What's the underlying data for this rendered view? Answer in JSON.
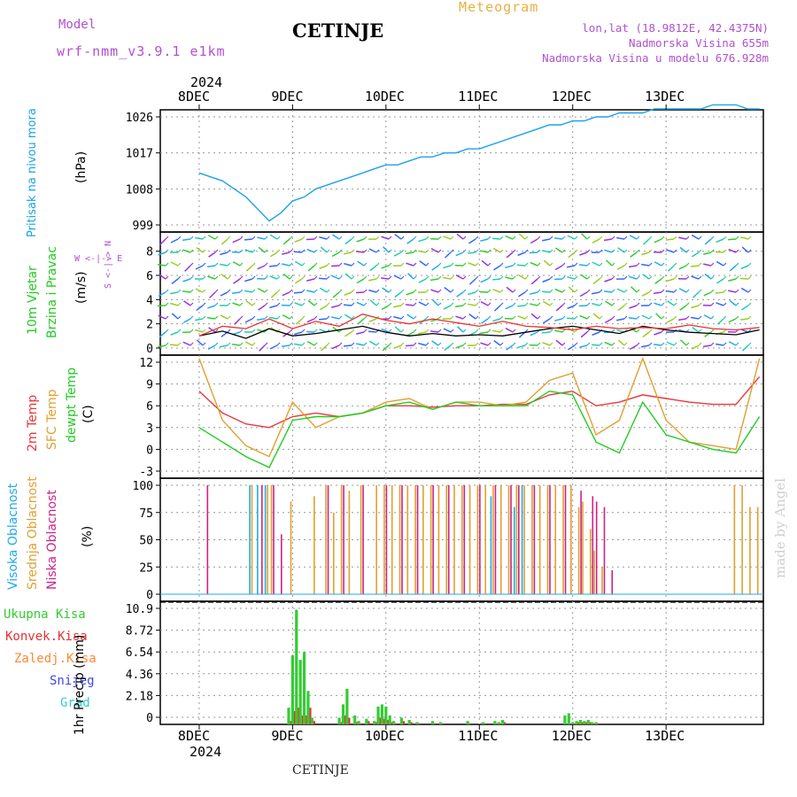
{
  "header": {
    "model_label": "Model",
    "model_value": "wrf-nmm_v3.9.1  e1km",
    "title": "CETINJE",
    "meteogram": "Meteogram",
    "lonlat": "lon,lat (18.9812E, 42.4375N)",
    "elevation": "Nadmorska Visina 655m",
    "model_elevation": "Nadmorska Visina u modelu 676.928m",
    "footer_station": "CETINJE",
    "watermark": "made by Angel"
  },
  "time_axis": {
    "top_year": "2024",
    "bottom_year": "2024",
    "day_labels": [
      "8DEC",
      "9DEC",
      "10DEC",
      "11DEC",
      "12DEC",
      "13DEC"
    ]
  },
  "panel_labels": {
    "pressure": [
      "Pritisak na nivou mora",
      "(hPa)"
    ],
    "wind": [
      "10m Vjetar",
      "Brzina i Pravac",
      "(m/s)"
    ],
    "compass": "W <-|-> E",
    "compass_ns": "S <-|-> N",
    "temp": [
      "2m Temp",
      "SFC Temp",
      "dewpt Temp",
      "(C)"
    ],
    "cloud": [
      "Visoka Oblacnost",
      "Srednja Oblacnost",
      "Niska Oblacnost",
      "(%)"
    ],
    "precip": [
      "Ukupna Kisa",
      "Konvek.Kisa",
      "Zaledj.Kisa",
      "Snijeg",
      "Grad"
    ],
    "precip_unit": "1hr Precip (mm)"
  },
  "colors": {
    "pressure": "#1aa3e8",
    "temp2m": "#e8373c",
    "sfc": "#e0a030",
    "dewpt": "#22cc22",
    "high_cloud": "#22aaee",
    "mid_cloud": "#e0a030",
    "low_cloud": "#cc2288",
    "total_rain": "#33cc33",
    "conv_rain": "#e83030",
    "frz_rain": "#ff8833",
    "snow": "#4444ee",
    "hail": "#33cccc",
    "meteogram": "#e8b040",
    "model": "#b050d0"
  },
  "chart_data": [
    {
      "type": "line",
      "name": "pressure",
      "xlabel": "",
      "ylabel": "(hPa)",
      "ylim": [
        999,
        1026
      ],
      "yticks": [
        "1026",
        "1017",
        "1008",
        "999"
      ],
      "x": [
        0,
        3,
        6,
        9,
        12,
        15,
        18,
        21,
        24,
        27,
        30,
        33,
        36,
        39,
        42,
        45,
        48,
        51,
        54,
        57,
        60,
        63,
        66,
        69,
        72,
        75,
        78,
        81,
        84,
        87,
        90,
        93,
        96,
        99,
        102,
        105,
        108,
        111,
        114,
        117,
        120,
        123,
        126,
        129,
        132,
        135,
        138,
        141,
        144
      ],
      "values": [
        1012,
        1011,
        1010,
        1008,
        1006,
        1003,
        1000,
        1002,
        1005,
        1006,
        1008,
        1009,
        1010,
        1011,
        1012,
        1013,
        1014,
        1014,
        1015,
        1016,
        1016,
        1017,
        1017,
        1018,
        1018,
        1019,
        1020,
        1021,
        1022,
        1023,
        1024,
        1024,
        1025,
        1025,
        1026,
        1026,
        1027,
        1027,
        1027,
        1028,
        1028,
        1028,
        1028,
        1028,
        1029,
        1029,
        1029,
        1028,
        1028
      ]
    },
    {
      "type": "line",
      "name": "wind",
      "xlabel": "",
      "ylabel": "(m/s)",
      "ylim": [
        0,
        9
      ],
      "yticks": [
        "8",
        "6",
        "4",
        "2",
        "0"
      ],
      "x": [
        0,
        6,
        12,
        18,
        24,
        30,
        36,
        42,
        48,
        54,
        60,
        66,
        72,
        78,
        84,
        90,
        96,
        102,
        108,
        114,
        120,
        126,
        132,
        138,
        144
      ],
      "series": [
        {
          "values": [
            1.0,
            1.4,
            0.8,
            1.6,
            1.0,
            1.2,
            1.5,
            1.8,
            1.3,
            1.0,
            1.2,
            1.0,
            1.1,
            1.0,
            1.3,
            1.6,
            1.8,
            1.5,
            1.2,
            1.8,
            1.5,
            1.3,
            1.2,
            1.1,
            1.5
          ]
        },
        {
          "values": [
            1.0,
            1.8,
            1.6,
            2.4,
            1.6,
            2.2,
            1.8,
            2.8,
            2.3,
            2.0,
            2.4,
            2.1,
            1.8,
            2.2,
            1.8,
            1.7,
            1.5,
            1.8,
            1.6,
            1.7,
            1.6,
            1.9,
            1.6,
            1.5,
            1.7
          ]
        }
      ]
    },
    {
      "type": "line",
      "name": "temperature",
      "xlabel": "",
      "ylabel": "(C)",
      "ylim": [
        -3,
        12
      ],
      "yticks": [
        "12",
        "9",
        "6",
        "3",
        "0",
        "-3"
      ],
      "x": [
        0,
        6,
        12,
        18,
        24,
        30,
        36,
        42,
        48,
        54,
        60,
        66,
        72,
        78,
        84,
        90,
        96,
        102,
        108,
        114,
        120,
        126,
        132,
        138,
        144
      ],
      "series": [
        {
          "values": [
            8.0,
            5.0,
            3.5,
            3.0,
            4.5,
            5.0,
            4.5,
            5.0,
            6.0,
            6.0,
            5.8,
            6.0,
            6.0,
            6.2,
            6.2,
            7.5,
            8.0,
            6.0,
            6.5,
            7.5,
            7.0,
            6.5,
            6.2,
            6.2,
            10.0
          ]
        },
        {
          "values": [
            12.5,
            4.0,
            0.5,
            -1.0,
            6.5,
            3.0,
            4.5,
            5.0,
            6.5,
            7.0,
            5.5,
            6.5,
            6.5,
            6.0,
            6.5,
            9.5,
            10.5,
            2.0,
            4.0,
            12.5,
            4.0,
            1.0,
            0.5,
            0.0,
            12.5
          ]
        },
        {
          "values": [
            3.0,
            1.0,
            -1.0,
            -2.5,
            4.0,
            4.5,
            4.5,
            5.0,
            6.0,
            6.5,
            5.5,
            6.5,
            6.0,
            6.0,
            6.0,
            8.0,
            7.5,
            1.0,
            -0.5,
            6.5,
            2.0,
            1.0,
            0.0,
            -0.5,
            4.5
          ]
        }
      ]
    },
    {
      "type": "bar",
      "name": "cloud",
      "xlabel": "",
      "ylabel": "(%)",
      "ylim": [
        0,
        100
      ],
      "yticks": [
        "100",
        "75",
        "50",
        "25",
        "0"
      ],
      "categories": [
        1,
        13,
        15,
        17,
        18,
        20,
        23,
        29,
        32,
        34,
        36,
        38,
        41,
        45,
        47,
        49,
        51,
        53,
        55,
        57,
        59,
        61,
        63,
        65,
        67,
        69,
        71,
        73,
        75,
        77,
        79,
        81,
        83,
        85,
        87,
        89,
        91,
        93,
        95,
        97,
        98,
        100,
        101,
        103,
        105,
        137,
        139,
        141,
        143
      ],
      "series": [
        {
          "values": [
            0,
            100,
            100,
            100,
            0,
            0,
            0,
            0,
            0,
            0,
            0,
            0,
            0,
            0,
            0,
            0,
            0,
            0,
            0,
            0,
            0,
            0,
            0,
            0,
            0,
            0,
            0,
            0,
            90,
            0,
            0,
            80,
            100,
            0,
            0,
            0,
            0,
            0,
            0,
            0,
            0,
            0,
            0,
            0,
            0,
            0,
            0,
            0,
            0
          ]
        },
        {
          "values": [
            0,
            100,
            0,
            100,
            100,
            0,
            85,
            90,
            100,
            75,
            100,
            95,
            100,
            100,
            100,
            100,
            100,
            100,
            100,
            100,
            100,
            100,
            100,
            100,
            100,
            100,
            100,
            100,
            100,
            100,
            100,
            100,
            100,
            100,
            100,
            100,
            100,
            100,
            100,
            80,
            85,
            60,
            40,
            25,
            0,
            100,
            100,
            80,
            80
          ]
        },
        {
          "values": [
            100,
            0,
            100,
            0,
            100,
            55,
            0,
            0,
            100,
            0,
            100,
            0,
            100,
            0,
            100,
            0,
            100,
            0,
            100,
            0,
            100,
            0,
            100,
            0,
            100,
            0,
            100,
            0,
            100,
            0,
            100,
            100,
            0,
            100,
            0,
            100,
            0,
            100,
            0,
            95,
            0,
            90,
            85,
            80,
            22,
            0,
            0,
            0,
            0
          ]
        }
      ]
    },
    {
      "type": "bar",
      "name": "precipitation",
      "xlabel": "",
      "ylabel": "1hr Precip (mm)",
      "ylim": [
        0,
        10.9
      ],
      "yticks": [
        "10.9",
        "8.72",
        "6.54",
        "4.36",
        "2.18",
        "0"
      ],
      "categories": [
        23,
        24,
        25,
        26,
        27,
        28,
        29,
        36,
        37,
        38,
        40,
        41,
        43,
        45,
        46,
        47,
        48,
        49,
        50,
        52,
        54,
        56,
        60,
        62,
        69,
        73,
        76,
        77,
        78,
        94,
        95,
        96,
        97,
        98,
        99,
        100,
        101,
        102
      ],
      "series": [
        {
          "name": "Ukupna Kisa",
          "values": [
            1.5,
            6.2,
            10.3,
            5.8,
            6.5,
            3.0,
            0.6,
            0.6,
            1.8,
            3.2,
            0.8,
            0.3,
            0.5,
            0.3,
            1.6,
            1.8,
            1.6,
            0.8,
            0.3,
            0.6,
            0.4,
            0.2,
            0.3,
            0.2,
            0.3,
            0.2,
            0.3,
            0.2,
            0.4,
            0.8,
            1.0,
            0.2,
            0.3,
            0.4,
            0.3,
            0.4,
            0.2,
            0.2
          ]
        },
        {
          "name": "Konvek.Kisa",
          "values": [
            0.3,
            1.2,
            1.5,
            0.8,
            0.8,
            1.5,
            0.3,
            0.2,
            0.8,
            0.6,
            0.2,
            0.1,
            0.3,
            0.2,
            0.6,
            0.5,
            0.4,
            0.2,
            0.1,
            0.3,
            0.2,
            0.1,
            0.1,
            0.1,
            0.1,
            0.1,
            0.1,
            0.1,
            0.2,
            0.0,
            0.0,
            0.1,
            0.2,
            0.2,
            0.2,
            0.2,
            0.1,
            0.1
          ]
        }
      ]
    }
  ]
}
